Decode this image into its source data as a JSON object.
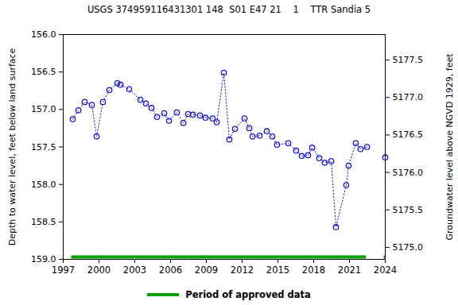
{
  "chart_data": {
    "type": "line",
    "title": "USGS 374959116431301 148  S01 E47 21    1    TTR Sandia 5",
    "y_label": "Depth to water level, feet below land surface",
    "y2_label": "Groundwater level above NGVD 1929, feet",
    "x": [
      1997.8,
      1998.27,
      1998.8,
      1999.4,
      1999.8,
      2000.33,
      2000.87,
      2001.53,
      2001.8,
      2002.53,
      2003.47,
      2003.93,
      2004.4,
      2004.87,
      2005.47,
      2005.87,
      2006.53,
      2007.07,
      2007.47,
      2007.87,
      2008.47,
      2008.93,
      2009.53,
      2009.87,
      2010.47,
      2010.93,
      2011.4,
      2012.2,
      2012.6,
      2012.87,
      2013.47,
      2014.07,
      2014.53,
      2014.93,
      2015.87,
      2016.53,
      2017.0,
      2017.53,
      2017.87,
      2018.47,
      2018.93,
      2019.47,
      2019.87,
      2020.73,
      2020.93,
      2021.53,
      2021.93,
      2022.47,
      null,
      2024.0
    ],
    "values": [
      157.13,
      157.01,
      156.9,
      156.94,
      157.36,
      156.9,
      156.74,
      156.65,
      156.67,
      156.73,
      156.87,
      156.92,
      156.98,
      157.1,
      157.05,
      157.15,
      157.04,
      157.18,
      157.06,
      157.07,
      157.08,
      157.11,
      157.12,
      157.17,
      156.51,
      157.4,
      157.26,
      157.12,
      157.25,
      157.36,
      157.35,
      157.29,
      157.36,
      157.47,
      157.45,
      157.55,
      157.62,
      157.61,
      157.51,
      157.65,
      157.71,
      157.69,
      158.57,
      158.01,
      157.75,
      157.45,
      157.53,
      157.5,
      null,
      157.64
    ],
    "color": "#1a1acd",
    "marker": "circle",
    "line_style": "dotted",
    "xlim": [
      1997,
      2024
    ],
    "xticks": [
      1997,
      2000,
      2003,
      2006,
      2009,
      2012,
      2015,
      2018,
      2021,
      2024
    ],
    "ylim": [
      156,
      159
    ],
    "yticks": [
      {
        "value": 156,
        "label": "156.0"
      },
      {
        "value": 156.5,
        "label": "156.5"
      },
      {
        "value": 157,
        "label": "157.0"
      },
      {
        "value": 157.5,
        "label": "157.5"
      },
      {
        "value": 158,
        "label": "158.0"
      },
      {
        "value": 158.5,
        "label": "158.5"
      },
      {
        "value": 159,
        "label": "159.0"
      }
    ],
    "y2lim": [
      5174.84,
      5177.84
    ],
    "y2ticks": [
      {
        "value": 5175,
        "label": "5175.0"
      },
      {
        "value": 5175.5,
        "label": "5175.5"
      },
      {
        "value": 5176,
        "label": "5176.0"
      },
      {
        "value": 5176.5,
        "label": "5176.5"
      },
      {
        "value": 5177,
        "label": "5177.0"
      },
      {
        "value": 5177.5,
        "label": "5177.5"
      }
    ],
    "approved_periods": {
      "name": "Period of approved data",
      "color": "#00a000",
      "ranges": [
        [
          1997.7,
          2022.4
        ],
        [
          2023.9,
          2024
        ]
      ]
    },
    "legend": "bottom",
    "grid": false
  }
}
